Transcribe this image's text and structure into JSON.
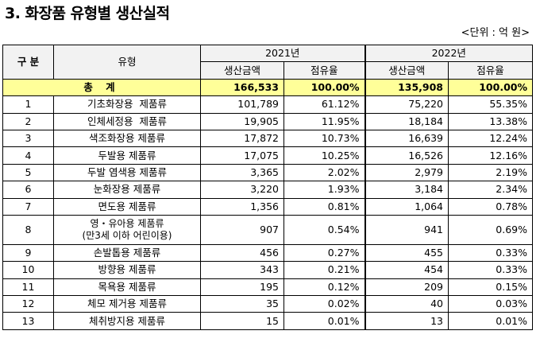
{
  "title": "3. 화장품 유형별 생산실적",
  "unit": "<단위 : 억 원>",
  "headers": {
    "category": "구 분",
    "type": "유형",
    "year2021": "2021년",
    "year2022": "2022년",
    "amount": "생산금액",
    "share": "점유율"
  },
  "total": {
    "label": "총 계",
    "a2021": "166,533",
    "s2021": "100.00%",
    "a2022": "135,908",
    "s2022": "100.00%"
  },
  "rows": [
    {
      "no": "1",
      "name": "기초화장용  제품류",
      "a2021": "101,789",
      "s2021": "61.12%",
      "a2022": "75,220",
      "s2022": "55.35%"
    },
    {
      "no": "2",
      "name": "인체세정용  제품류",
      "a2021": "19,905",
      "s2021": "11.95%",
      "a2022": "18,184",
      "s2022": "13.38%"
    },
    {
      "no": "3",
      "name": "색조화장용 제품류",
      "a2021": "17,872",
      "s2021": "10.73%",
      "a2022": "16,639",
      "s2022": "12.24%"
    },
    {
      "no": "4",
      "name": "두발용 제품류",
      "a2021": "17,075",
      "s2021": "10.25%",
      "a2022": "16,526",
      "s2022": "12.16%"
    },
    {
      "no": "5",
      "name": "두발 염색용 제품류",
      "a2021": "3,365",
      "s2021": "2.02%",
      "a2022": "2,979",
      "s2022": "2.19%"
    },
    {
      "no": "6",
      "name": "눈화장용 제품류",
      "a2021": "3,220",
      "s2021": "1.93%",
      "a2022": "3,184",
      "s2022": "2.34%"
    },
    {
      "no": "7",
      "name": "면도용 제품류",
      "a2021": "1,356",
      "s2021": "0.81%",
      "a2022": "1,064",
      "s2022": "0.78%"
    },
    {
      "no": "8",
      "name": "영・유아용 제품류",
      "name2": "(만3세 이하 어린이용)",
      "a2021": "907",
      "s2021": "0.54%",
      "a2022": "941",
      "s2022": "0.69%"
    },
    {
      "no": "9",
      "name": "손발톱용 제품류",
      "a2021": "456",
      "s2021": "0.27%",
      "a2022": "455",
      "s2022": "0.33%"
    },
    {
      "no": "10",
      "name": "방향용 제품류",
      "a2021": "343",
      "s2021": "0.21%",
      "a2022": "454",
      "s2022": "0.33%"
    },
    {
      "no": "11",
      "name": "목욕용 제품류",
      "a2021": "195",
      "s2021": "0.12%",
      "a2022": "209",
      "s2022": "0.15%"
    },
    {
      "no": "12",
      "name": "체모 제거용 제품류",
      "a2021": "35",
      "s2021": "0.02%",
      "a2022": "40",
      "s2022": "0.03%"
    },
    {
      "no": "13",
      "name": "체취방지용 제품류",
      "a2021": "15",
      "s2021": "0.01%",
      "a2022": "13",
      "s2022": "0.01%"
    }
  ]
}
